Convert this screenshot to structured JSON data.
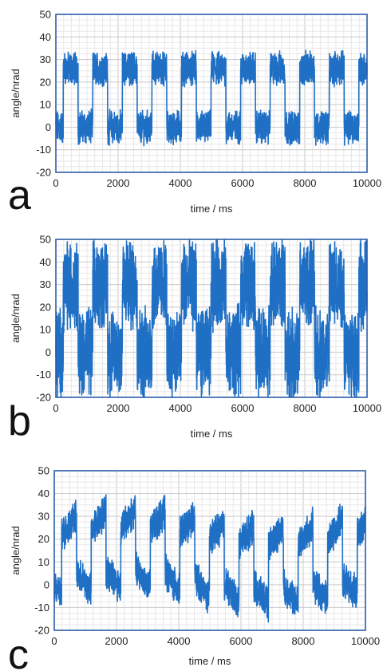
{
  "chart_data": [
    {
      "type": "line",
      "panel_label": "a",
      "xlabel": "time / ms",
      "ylabel": "angle/nrad",
      "xlim": [
        0,
        10000
      ],
      "ylim": [
        -20,
        50
      ],
      "xticks": [
        "0",
        "2000",
        "4000",
        "6000",
        "8000",
        "10000"
      ],
      "yticks": [
        "50",
        "40",
        "30",
        "20",
        "10",
        "0",
        "-10",
        "-20"
      ],
      "grid": true,
      "color": "#1f6fc5",
      "signal": {
        "shape": "square",
        "period_ms": 950,
        "high_level": 26,
        "low_level": 0,
        "noise_amplitude": 6,
        "high_range": [
          19,
          33
        ],
        "low_range": [
          -8,
          7
        ]
      }
    },
    {
      "type": "line",
      "panel_label": "b",
      "xlabel": "time / ms",
      "ylabel": "angle/nrad",
      "xlim": [
        0,
        10000
      ],
      "ylim": [
        -20,
        50
      ],
      "xticks": [
        "0",
        "2000",
        "4000",
        "6000",
        "8000",
        "10000"
      ],
      "yticks": [
        "50",
        "40",
        "30",
        "20",
        "10",
        "0",
        "-10",
        "-20"
      ],
      "grid": true,
      "color": "#1f6fc5",
      "signal": {
        "shape": "square",
        "period_ms": 950,
        "high_level": 30,
        "low_level": 0,
        "noise_amplitude": 16,
        "high_range": [
          13,
          47
        ],
        "low_range": [
          -20,
          20
        ]
      }
    },
    {
      "type": "line",
      "panel_label": "c",
      "xlabel": "time / ms",
      "ylabel": "angle/nrad",
      "xlim": [
        0,
        10000
      ],
      "ylim": [
        -20,
        50
      ],
      "xticks": [
        "0",
        "2000",
        "4000",
        "6000",
        "8000",
        "10000"
      ],
      "yticks": [
        "50",
        "40",
        "30",
        "20",
        "10",
        "0",
        "-10",
        "-20"
      ],
      "grid": true,
      "color": "#1f6fc5",
      "signal": {
        "shape": "square-with-drift",
        "period_ms": 950,
        "high_level": 25,
        "low_level": -1,
        "noise_amplitude": 6,
        "high_range": [
          15,
          43
        ],
        "low_range": [
          -14,
          12
        ]
      }
    }
  ]
}
